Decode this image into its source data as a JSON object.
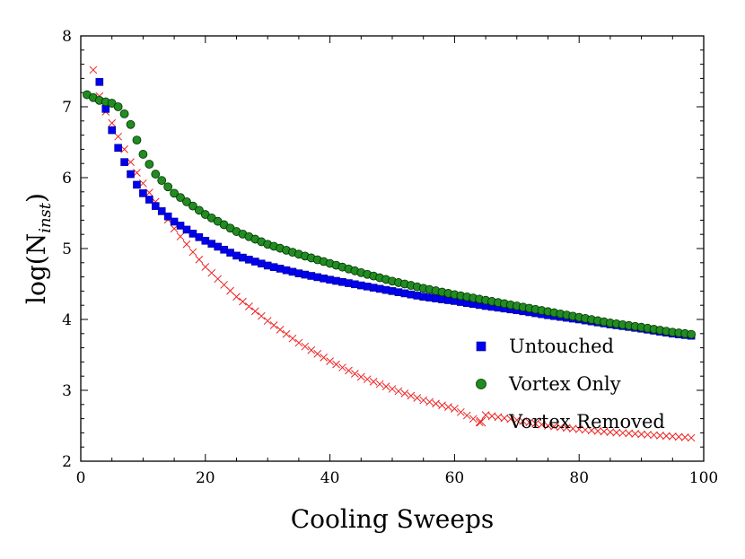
{
  "chart_data": {
    "type": "scatter",
    "title": "",
    "xlabel": "Cooling Sweeps",
    "ylabel_main": "log(N",
    "ylabel_sub": "inst",
    "ylabel_close": ")",
    "xlim": [
      0,
      100
    ],
    "ylim": [
      2,
      8
    ],
    "xticks": [
      "0",
      "20",
      "40",
      "60",
      "80",
      "100"
    ],
    "yticks": [
      "2",
      "3",
      "4",
      "5",
      "6",
      "7",
      "8"
    ],
    "legend_position": "bottom-right",
    "series": [
      {
        "name": "Untouched",
        "marker": "square",
        "color": "#0000ee",
        "x": [
          3,
          4,
          5,
          6,
          7,
          8,
          9,
          10,
          12,
          15,
          18,
          20,
          25,
          30,
          35,
          40,
          45,
          50,
          55,
          60,
          65,
          70,
          75,
          80,
          85,
          90,
          95,
          98
        ],
        "y": [
          7.35,
          6.97,
          6.67,
          6.42,
          6.22,
          6.05,
          5.9,
          5.78,
          5.6,
          5.38,
          5.21,
          5.11,
          4.9,
          4.76,
          4.65,
          4.56,
          4.48,
          4.4,
          4.32,
          4.26,
          4.19,
          4.13,
          4.06,
          4.0,
          3.93,
          3.87,
          3.8,
          3.77
        ]
      },
      {
        "name": "Vortex Only",
        "marker": "circle",
        "color": "#228b22",
        "x": [
          1,
          2,
          3,
          4,
          5,
          6,
          7,
          8,
          9,
          10,
          12,
          15,
          18,
          20,
          25,
          30,
          35,
          40,
          45,
          50,
          55,
          60,
          65,
          70,
          75,
          80,
          85,
          90,
          95,
          98
        ],
        "y": [
          7.17,
          7.13,
          7.09,
          7.07,
          7.05,
          7.0,
          6.9,
          6.75,
          6.53,
          6.33,
          6.05,
          5.78,
          5.6,
          5.48,
          5.24,
          5.06,
          4.92,
          4.79,
          4.66,
          4.54,
          4.44,
          4.35,
          4.27,
          4.19,
          4.11,
          4.03,
          3.95,
          3.89,
          3.82,
          3.79
        ]
      },
      {
        "name": "Vortex Removed",
        "marker": "cross",
        "color": "#ee2020",
        "x": [
          2,
          3,
          4,
          5,
          6,
          7,
          8,
          9,
          10,
          12,
          15,
          18,
          20,
          25,
          30,
          35,
          40,
          45,
          50,
          55,
          60,
          64,
          65,
          70,
          75,
          80,
          85,
          90,
          95,
          98
        ],
        "y": [
          7.52,
          7.15,
          6.93,
          6.77,
          6.58,
          6.4,
          6.22,
          6.07,
          5.92,
          5.66,
          5.28,
          4.95,
          4.74,
          4.32,
          3.98,
          3.67,
          3.41,
          3.19,
          3.02,
          2.86,
          2.74,
          2.55,
          2.65,
          2.58,
          2.5,
          2.45,
          2.41,
          2.38,
          2.35,
          2.33
        ]
      }
    ]
  }
}
